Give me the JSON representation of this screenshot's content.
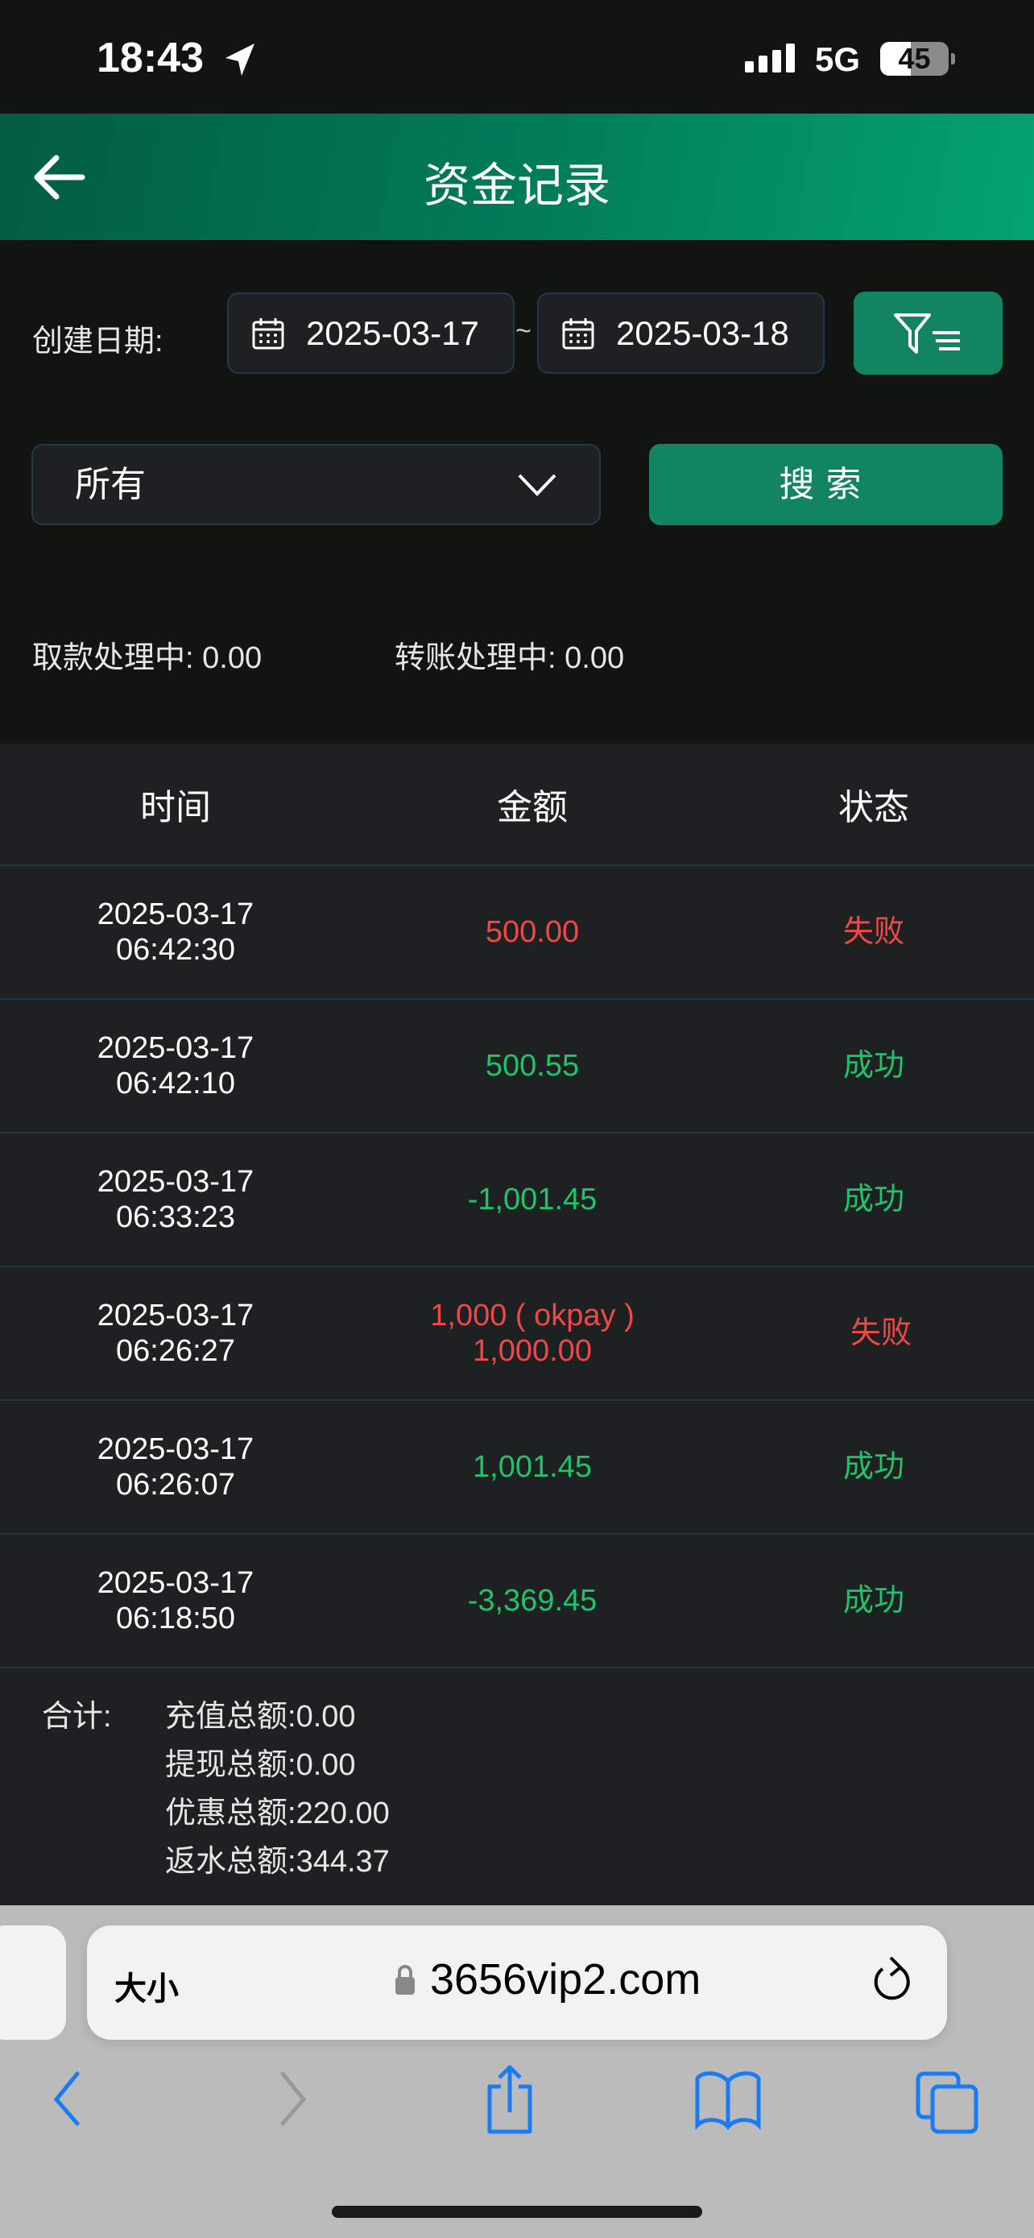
{
  "status_bar": {
    "time": "18:43",
    "network": "5G",
    "battery": "45"
  },
  "header": {
    "title": "资金记录"
  },
  "filters": {
    "date_label": "创建日期:",
    "start_date": "2025-03-17",
    "separator": "~",
    "end_date": "2025-03-18",
    "type_selected": "所有",
    "search_label": "搜索"
  },
  "pending": {
    "withdraw_label": "取款处理中:",
    "withdraw_value": "0.00",
    "transfer_label": "转账处理中:",
    "transfer_value": "0.00"
  },
  "table": {
    "headers": [
      "时间",
      "金额",
      "状态"
    ],
    "rows": [
      {
        "date": "2025-03-17",
        "time": "06:42:30",
        "amount": "500.00",
        "amount_note": "",
        "status": "失败",
        "status_color": "#f04848"
      },
      {
        "date": "2025-03-17",
        "time": "06:42:10",
        "amount": "500.55",
        "amount_note": "",
        "status": "成功",
        "status_color": "#1fc46a"
      },
      {
        "date": "2025-03-17",
        "time": "06:33:23",
        "amount": "-1,001.45",
        "amount_note": "",
        "status": "成功",
        "status_color": "#1fc46a"
      },
      {
        "date": "2025-03-17",
        "time": "06:26:27",
        "amount": "1,000.00",
        "amount_note": "1,000 ( okpay )",
        "status": "失败",
        "status_color": "#f04848"
      },
      {
        "date": "2025-03-17",
        "time": "06:26:07",
        "amount": "1,001.45",
        "amount_note": "",
        "status": "成功",
        "status_color": "#1fc46a"
      },
      {
        "date": "2025-03-17",
        "time": "06:18:50",
        "amount": "-3,369.45",
        "amount_note": "",
        "status": "成功",
        "status_color": "#1fc46a"
      }
    ]
  },
  "summary": {
    "label": "合计:",
    "items": [
      {
        "label": "充值总额:",
        "value": "0.00"
      },
      {
        "label": "提现总额:",
        "value": "0.00"
      },
      {
        "label": "优惠总额:",
        "value": "220.00"
      },
      {
        "label": "返水总额:",
        "value": "344.37"
      }
    ]
  },
  "browser": {
    "text_size": "大小",
    "url": "3656vip2.com"
  },
  "colors": {
    "accent": "#138462",
    "fail": "#f04848",
    "success": "#1fc46a",
    "ios_blue": "#1a7cf5"
  }
}
